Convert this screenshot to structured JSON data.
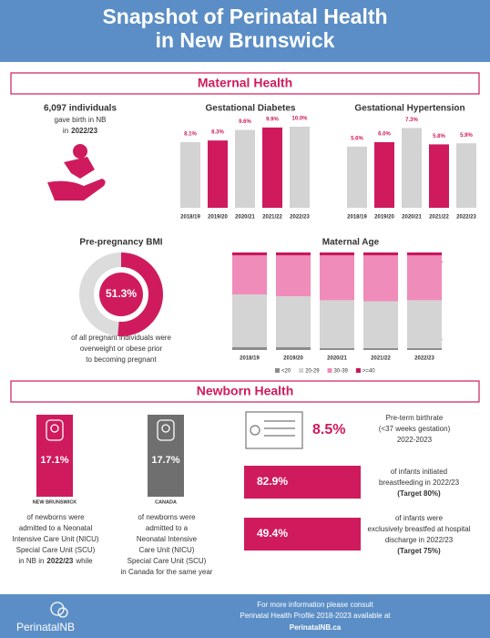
{
  "header": {
    "title_lines": [
      "Snapshot of Perinatal Health",
      "in New Brunswick"
    ]
  },
  "maternal": {
    "heading": "Maternal Health",
    "births": {
      "count": "6,097 individuals",
      "line1": "gave birth in NB",
      "line2": "in",
      "year": "2022/23"
    },
    "bmi_note": [
      "of all pregnant individuals were",
      "overweight or obese prior",
      "to becoming pregnant"
    ]
  },
  "chart_data": [
    {
      "type": "bar",
      "title": "Gestational Diabetes",
      "categories": [
        "2018/19",
        "2019/20",
        "2020/21",
        "2021/22",
        "2022/23"
      ],
      "values": [
        8.1,
        8.3,
        9.6,
        9.9,
        10.0
      ],
      "value_labels": [
        "8.1%",
        "8.3%",
        "9.6%",
        "9.9%",
        "10.0%"
      ],
      "colors": [
        "#d3d3d3",
        "#cf1b5e",
        "#d3d3d3",
        "#cf1b5e",
        "#d3d3d3"
      ]
    },
    {
      "type": "bar",
      "title": "Gestational  Hypertension",
      "categories": [
        "2018/19",
        "2019/20",
        "2020/21",
        "2021/22",
        "2022/23"
      ],
      "values": [
        5.6,
        6.0,
        7.3,
        5.8,
        5.9
      ],
      "value_labels": [
        "5.6%",
        "6.0%",
        "7.3%",
        "5.8%",
        "5.9%"
      ],
      "colors": [
        "#d3d3d3",
        "#cf1b5e",
        "#d3d3d3",
        "#cf1b5e",
        "#d3d3d3"
      ]
    },
    {
      "type": "donut",
      "title": "Pre-pregnancy BMI",
      "values": [
        51.3
      ],
      "value_labels": [
        "51.3%"
      ],
      "color": "#cf1b5e"
    },
    {
      "type": "stacked_bar",
      "title": "Maternal Age",
      "categories": [
        "2018/19",
        "2019/20",
        "2020/21",
        "2021/22",
        "2022/23"
      ],
      "series": [
        {
          "name": "<20",
          "color": "#8c8c8c",
          "values": [
            3,
            3,
            2,
            2,
            2
          ]
        },
        {
          "name": "20-29",
          "color": "#d4d4d4",
          "values": [
            54,
            52,
            49,
            48,
            49
          ]
        },
        {
          "name": "30-39",
          "color": "#f08cba",
          "values": [
            40,
            42,
            46,
            47,
            46
          ]
        },
        {
          "name": ">=40",
          "color": "#c8175c",
          "values": [
            3,
            3,
            3,
            3,
            3
          ]
        }
      ]
    }
  ],
  "newborn": {
    "heading": "Newborn Health",
    "nicu": [
      {
        "value": "17.1%",
        "region": "NEW BRUNSWICK",
        "lines": [
          "of newborns were",
          "admitted to a Neonatal",
          "Intensive Care Unit (NICU)",
          "Special Care Unit (SCU)"
        ],
        "last": [
          "in NB in",
          "2022/23",
          "while"
        ]
      },
      {
        "value": "17.7%",
        "region": "CANADA",
        "lines": [
          "of newborns were",
          "admitted to a",
          "Neonatal Intensive",
          "Care Unit (NICU)",
          "Special Care Unit (SCU)",
          "in Canada for the same year"
        ]
      }
    ],
    "preterm": {
      "value": "8.5%",
      "lines": [
        "Pre-term birthrate",
        "(<37 weeks gestation)",
        "2022-2023"
      ]
    },
    "breastfeeding": [
      {
        "value": "82.9%",
        "lines": [
          "of infants initiated",
          "breastfeeding in 2022/23"
        ],
        "target": "(Target 80%)"
      },
      {
        "value": "49.4%",
        "lines": [
          "of infants were",
          "exclusively breastfed at hospital",
          "discharge in 2022/23"
        ],
        "target": "(Target 75%)"
      }
    ]
  },
  "footer": {
    "lines": [
      "For more information please consult",
      "Perinatal Health Profile 2018-2023 available at"
    ],
    "link": "PerinatalNB.ca",
    "logo": "PerinatalNB"
  }
}
